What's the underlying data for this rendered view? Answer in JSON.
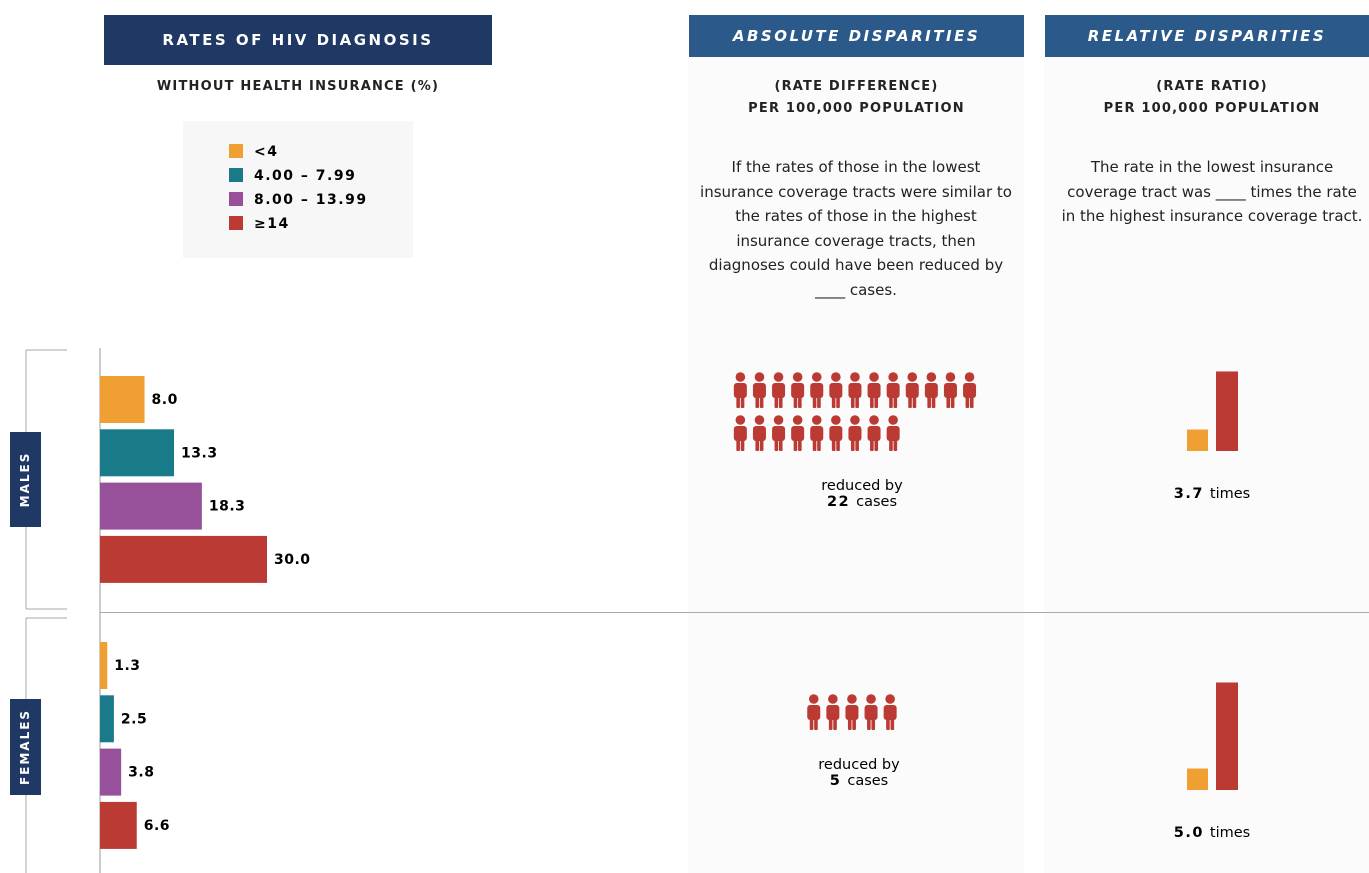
{
  "header": {
    "title": "RATES OF HIV DIAGNOSIS",
    "subtitle": "WITHOUT HEALTH INSURANCE (%)"
  },
  "absolute": {
    "title": "ABSOLUTE DISPARITIES",
    "subtitle_lines": [
      "(RATE DIFFERENCE)",
      "PER 100,000 POPULATION"
    ],
    "description": "If the rates of those in the lowest insurance coverage tracts were similar to the rates of those in the highest insurance coverage tracts, then diagnoses could have been reduced by ____ cases."
  },
  "relative": {
    "title": "RELATIVE DISPARITIES",
    "subtitle_lines": [
      "(RATE RATIO)",
      "PER 100,000 POPULATION"
    ],
    "description": "The rate in the lowest insurance coverage tract was ____ times the rate in the highest insurance coverage tract."
  },
  "chart_data": {
    "type": "bar",
    "orientation": "horizontal",
    "categories": [
      "<4",
      "4.00 – 7.99",
      "8.00 – 13.99",
      "≥14"
    ],
    "colors": [
      "#f0a033",
      "#197b8a",
      "#96519a",
      "#bb3a34"
    ],
    "groups": [
      {
        "name": "MALES",
        "values": [
          8.0,
          13.3,
          18.3,
          30.0
        ],
        "value_labels": [
          "8.0",
          "13.3",
          "18.3",
          "30.0"
        ],
        "cases_prefix": "reduced by",
        "cases": 22,
        "cases_suffix": "cases",
        "ratio": 3.7,
        "ratio_suffix": "times"
      },
      {
        "name": "FEMALES",
        "values": [
          1.3,
          2.5,
          3.8,
          6.6
        ],
        "value_labels": [
          "1.3",
          "2.5",
          "3.8",
          "6.6"
        ],
        "cases_prefix": "reduced by",
        "cases": 5,
        "cases_suffix": "cases",
        "ratio": 5.0,
        "ratio_label": "5.0",
        "ratio_suffix": "times"
      }
    ]
  }
}
